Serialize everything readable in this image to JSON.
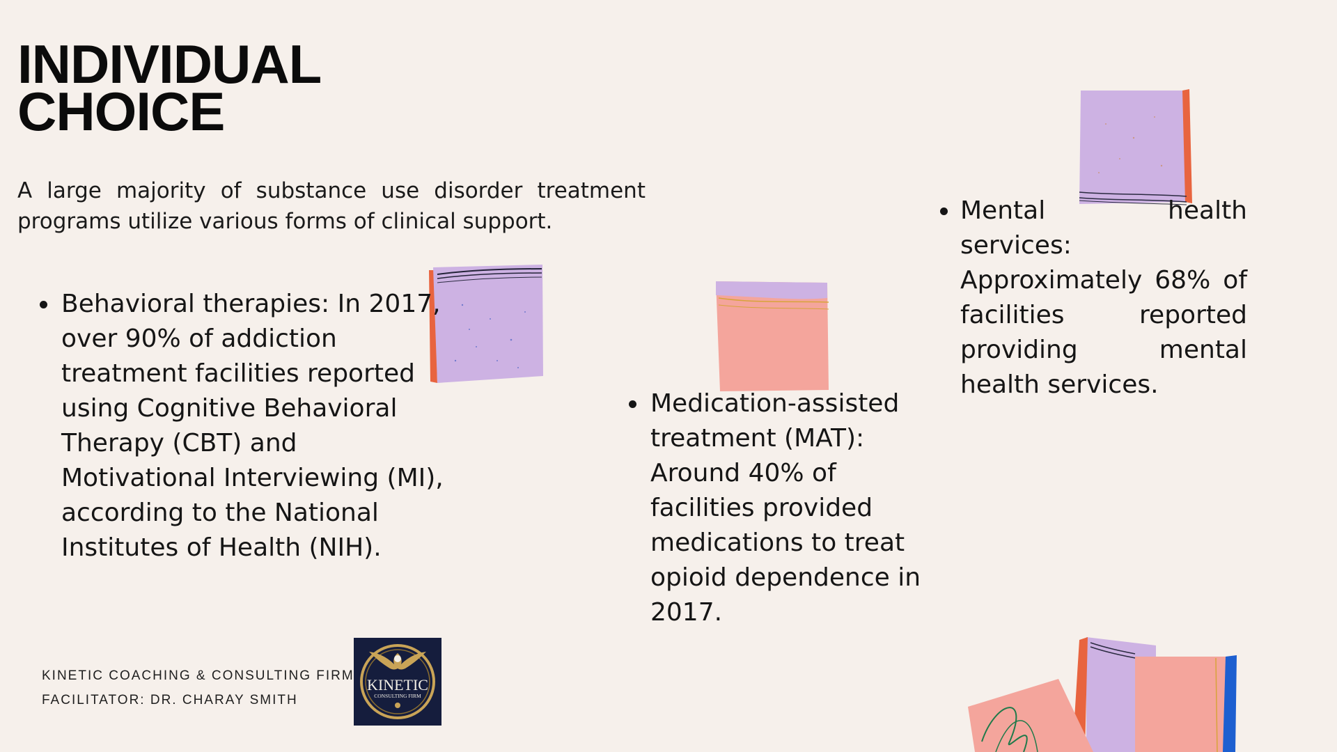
{
  "slide": {
    "title_line1": "INDIVIDUAL",
    "title_line2": "CHOICE",
    "intro": "A large majority of substance use disorder treatment programs utilize various forms of clinical support."
  },
  "bullets": [
    {
      "text": "Behavioral therapies: In 2017, over 90% of addiction treatment facilities reported using Cognitive Behavioral Therapy (CBT) and Motivational Interviewing (MI), according to the National Institutes of Health (NIH)."
    },
    {
      "text": "Medication-assisted treatment (MAT): Around 40% of facilities provided medications to treat opioid dependence in 2017."
    },
    {
      "text": "Mental health services: Approximately 68% of facilities reported providing mental health services."
    }
  ],
  "footer": {
    "firm": "KINETIC COACHING & CONSULTING FIRM",
    "facilitator": "FACILITATOR: DR. CHARAY SMITH"
  },
  "logo": {
    "name": "KINETIC",
    "subtitle": "CONSULTING FIRM",
    "icon": "eagle-icon"
  },
  "colors": {
    "background": "#f6f0eb",
    "lavender": "#cdb2e3",
    "pink": "#f4a59c",
    "orange_red": "#e8643f",
    "blue": "#1d5fd0",
    "navy": "#151d3d",
    "gold": "#c9a457"
  }
}
